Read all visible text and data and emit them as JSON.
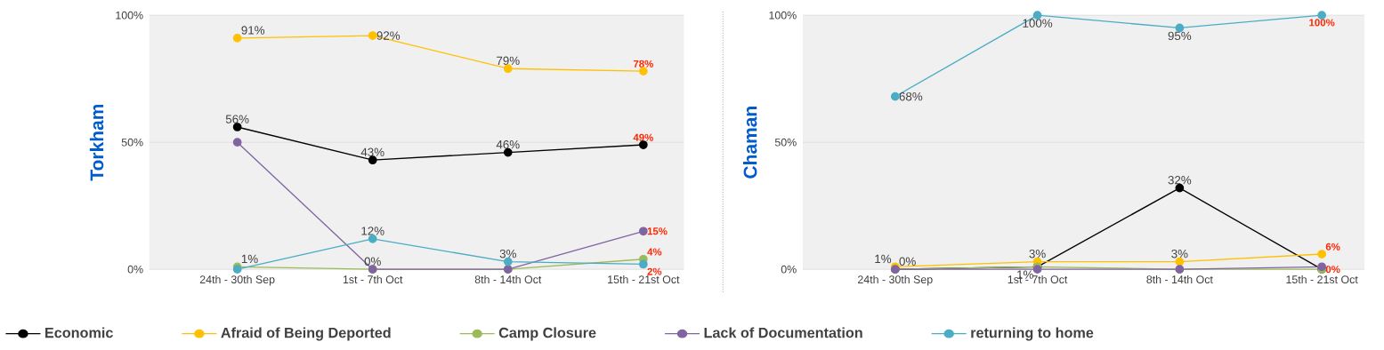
{
  "chart_data": [
    {
      "type": "line",
      "ylabel": "Torkham",
      "categories": [
        "24th - 30th Sep",
        "1st - 7th Oct",
        "8th - 14th Oct",
        "15th - 21st Oct"
      ],
      "ylim": [
        0,
        100
      ],
      "yticks": [
        {
          "value": 0,
          "label": "0%"
        },
        {
          "value": 50,
          "label": "50%"
        },
        {
          "value": 100,
          "label": "100%"
        }
      ],
      "grid": "y",
      "marker": "circle",
      "legend": "bottom",
      "series": [
        {
          "name": "Economic",
          "color": "#000000",
          "values": [
            56,
            43,
            46,
            49
          ],
          "value_labels": [
            "56%",
            "43%",
            "46%",
            "49%"
          ]
        },
        {
          "name": "Afraid of Being Deported",
          "color": "#ffc000",
          "values": [
            91,
            92,
            79,
            78
          ],
          "value_labels": [
            "91%",
            "92%",
            "79%",
            "78%"
          ]
        },
        {
          "name": "Camp Closure",
          "color": "#9bbb59",
          "values": [
            1,
            0,
            0,
            4
          ],
          "value_labels": [
            "1%",
            null,
            null,
            "4%"
          ]
        },
        {
          "name": "Lack of Documentation",
          "color": "#8064a2",
          "values": [
            50,
            0,
            0,
            15
          ],
          "value_labels": [
            null,
            "0%",
            null,
            "15%"
          ]
        },
        {
          "name": "returning to home",
          "color": "#4bacc6",
          "values": [
            0,
            12,
            3,
            2
          ],
          "value_labels": [
            null,
            "12%",
            "3%",
            "2%"
          ]
        }
      ]
    },
    {
      "type": "line",
      "ylabel": "Chaman",
      "categories": [
        "24th - 30th Sep",
        "1st - 7th Oct",
        "8th - 14th Oct",
        "15th - 21st Oct"
      ],
      "ylim": [
        0,
        100
      ],
      "yticks": [
        {
          "value": 0,
          "label": "0%"
        },
        {
          "value": 50,
          "label": "50%"
        },
        {
          "value": 100,
          "label": "100%"
        }
      ],
      "grid": "y",
      "marker": "circle",
      "series": [
        {
          "color": "#000000",
          "values": [
            0,
            1,
            32,
            0
          ],
          "value_labels": [
            "0%",
            "1%",
            "32%",
            "0%"
          ]
        },
        {
          "color": "#ffc000",
          "values": [
            1,
            3,
            3,
            6
          ],
          "value_labels": [
            "1%",
            "3%",
            "3%",
            "6%"
          ]
        },
        {
          "color": "#9bbb59",
          "values": [
            0,
            1,
            0,
            0
          ]
        },
        {
          "color": "#8064a2",
          "values": [
            0,
            0,
            0,
            1
          ]
        },
        {
          "color": "#4bacc6",
          "values": [
            68,
            100,
            95,
            100
          ],
          "value_labels": [
            "68%",
            "100%",
            "95%",
            "100%"
          ]
        }
      ]
    }
  ]
}
